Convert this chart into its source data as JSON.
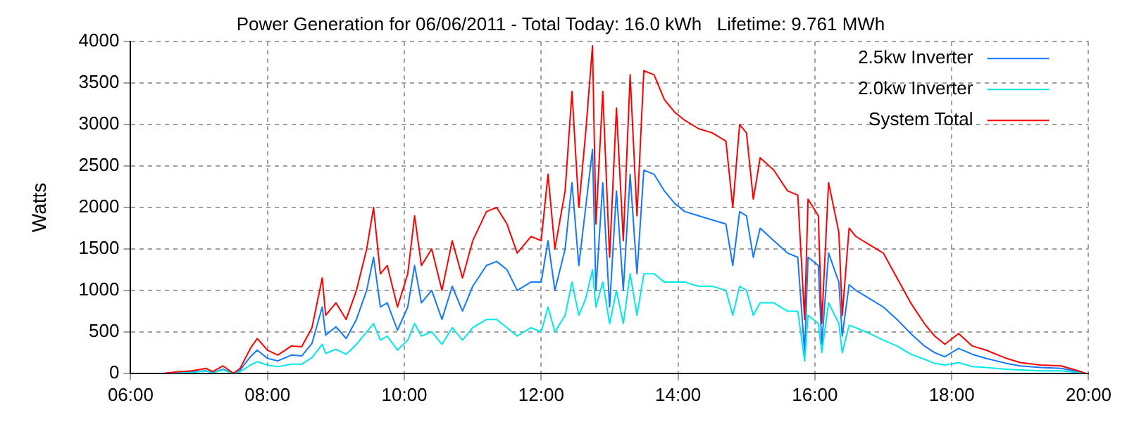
{
  "chart_data": {
    "type": "line",
    "title": "Power Generation for 06/06/2011 - Total Today: 16.0 kWh   Lifetime: 9.761 MWh",
    "ylabel": "Watts",
    "x": [
      6.5,
      6.7,
      6.9,
      7.1,
      7.2,
      7.35,
      7.5,
      7.6,
      7.75,
      7.85,
      8.0,
      8.15,
      8.35,
      8.5,
      8.65,
      8.8,
      8.85,
      9.0,
      9.15,
      9.3,
      9.45,
      9.55,
      9.65,
      9.75,
      9.9,
      10.05,
      10.15,
      10.25,
      10.4,
      10.55,
      10.7,
      10.85,
      11.0,
      11.2,
      11.35,
      11.5,
      11.65,
      11.85,
      12.0,
      12.1,
      12.2,
      12.35,
      12.45,
      12.55,
      12.65,
      12.75,
      12.8,
      12.9,
      13.0,
      13.1,
      13.2,
      13.3,
      13.4,
      13.5,
      13.65,
      13.8,
      13.95,
      14.1,
      14.3,
      14.5,
      14.7,
      14.8,
      14.9,
      15.0,
      15.1,
      15.2,
      15.4,
      15.6,
      15.75,
      15.85,
      15.9,
      16.05,
      16.1,
      16.2,
      16.35,
      16.4,
      16.5,
      16.6,
      16.8,
      17.0,
      17.2,
      17.4,
      17.6,
      17.75,
      17.9,
      18.1,
      18.3,
      18.5,
      18.8,
      19.0,
      19.3,
      19.6,
      19.85,
      19.95
    ],
    "series": [
      {
        "name": "2.5kw Inverter",
        "color": "#1478ff",
        "values": [
          0,
          10,
          20,
          30,
          10,
          50,
          0,
          40,
          200,
          280,
          180,
          150,
          220,
          210,
          360,
          800,
          460,
          560,
          420,
          650,
          1000,
          1400,
          800,
          850,
          520,
          800,
          1300,
          850,
          1000,
          650,
          1050,
          750,
          1050,
          1300,
          1350,
          1250,
          1000,
          1100,
          1100,
          1600,
          1000,
          1500,
          2300,
          1300,
          2000,
          2700,
          1000,
          2300,
          800,
          2200,
          1000,
          2400,
          1200,
          2450,
          2400,
          2200,
          2050,
          1950,
          1900,
          1850,
          1800,
          1300,
          1950,
          1900,
          1400,
          1750,
          1600,
          1450,
          1400,
          250,
          1400,
          1300,
          350,
          1450,
          1100,
          450,
          1070,
          1000,
          900,
          800,
          650,
          480,
          330,
          250,
          200,
          300,
          230,
          180,
          120,
          90,
          70,
          60,
          20,
          0
        ]
      },
      {
        "name": "2.0kw Inverter",
        "color": "#00e8e8",
        "values": [
          0,
          10,
          10,
          30,
          10,
          40,
          0,
          20,
          100,
          140,
          100,
          80,
          110,
          110,
          190,
          350,
          240,
          290,
          230,
          350,
          500,
          600,
          400,
          450,
          280,
          400,
          600,
          450,
          500,
          350,
          550,
          400,
          550,
          650,
          650,
          550,
          450,
          550,
          500,
          800,
          500,
          700,
          1100,
          700,
          900,
          1250,
          800,
          1100,
          600,
          1000,
          600,
          1200,
          700,
          1200,
          1200,
          1100,
          1100,
          1100,
          1050,
          1050,
          1000,
          700,
          1050,
          1000,
          700,
          850,
          850,
          750,
          750,
          150,
          700,
          600,
          250,
          850,
          600,
          250,
          580,
          550,
          480,
          400,
          330,
          230,
          170,
          120,
          100,
          130,
          80,
          70,
          50,
          40,
          30,
          30,
          10,
          0
        ]
      },
      {
        "name": "System Total",
        "color": "#ff0000",
        "values": [
          0,
          20,
          30,
          60,
          20,
          90,
          0,
          60,
          300,
          420,
          280,
          220,
          330,
          320,
          550,
          1150,
          700,
          850,
          650,
          1000,
          1500,
          2000,
          1200,
          1300,
          800,
          1200,
          1900,
          1300,
          1500,
          1000,
          1600,
          1150,
          1600,
          1950,
          2000,
          1800,
          1450,
          1650,
          1600,
          2400,
          1500,
          2200,
          3400,
          2000,
          2900,
          3950,
          1800,
          3400,
          1400,
          3200,
          1600,
          3600,
          1900,
          3650,
          3600,
          3300,
          3150,
          3050,
          2950,
          2900,
          2800,
          2000,
          3000,
          2900,
          2100,
          2600,
          2450,
          2200,
          2150,
          650,
          2100,
          1900,
          600,
          2300,
          1700,
          700,
          1750,
          1650,
          1550,
          1450,
          1150,
          850,
          600,
          450,
          350,
          480,
          330,
          280,
          180,
          130,
          100,
          90,
          30,
          0
        ]
      }
    ],
    "xlim": [
      6,
      20
    ],
    "xticks": [
      {
        "value": 6,
        "label": "06:00"
      },
      {
        "value": 8,
        "label": "08:00"
      },
      {
        "value": 10,
        "label": "10:00"
      },
      {
        "value": 12,
        "label": "12:00"
      },
      {
        "value": 14,
        "label": "14:00"
      },
      {
        "value": 16,
        "label": "16:00"
      },
      {
        "value": 18,
        "label": "18:00"
      },
      {
        "value": 20,
        "label": "20:00"
      }
    ],
    "ylim": [
      0,
      4000
    ],
    "yticks": [
      0,
      500,
      1000,
      1500,
      2000,
      2500,
      3000,
      3500,
      4000
    ],
    "grid": true,
    "legend": "top right",
    "marker": "none",
    "line_style": "solid"
  }
}
